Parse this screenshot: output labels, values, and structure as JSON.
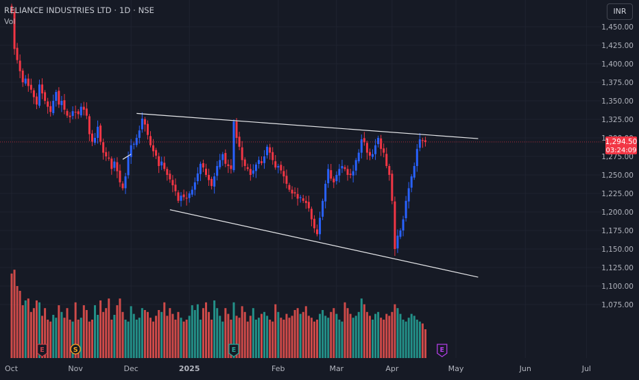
{
  "header": {
    "symbol_title": "RELIANCE INDUSTRIES LTD · 1D · NSE",
    "volume_label": "Vol",
    "currency": "INR"
  },
  "price_badge": {
    "price": "1,294.50",
    "countdown": "03:24:09",
    "color": "#f23645"
  },
  "event_markers": [
    {
      "letter": "E",
      "kind": "earnings",
      "color": "#c2404b",
      "date_index": 11
    },
    {
      "letter": "S",
      "kind": "split",
      "color": "#f5a623",
      "date_index": 23
    },
    {
      "letter": "E",
      "kind": "earnings",
      "color": "#26a69a",
      "date_index": 80
    },
    {
      "letter": "E",
      "kind": "earnings-upcoming",
      "color": "#b03ee3",
      "date_index": 155
    }
  ],
  "chart_data": {
    "type": "candlestick",
    "y_ticks": [
      "1,450.00",
      "1,425.00",
      "1,400.00",
      "1,375.00",
      "1,350.00",
      "1,325.00",
      "1,300.00",
      "1,275.00",
      "1,250.00",
      "1,225.00",
      "1,200.00",
      "1,175.00",
      "1,150.00",
      "1,125.00",
      "1,100.00",
      "1,075.00"
    ],
    "y_tick_values": [
      1450,
      1425,
      1400,
      1375,
      1350,
      1325,
      1300,
      1275,
      1250,
      1225,
      1200,
      1175,
      1150,
      1125,
      1100,
      1075
    ],
    "x_labels": [
      {
        "label": "Oct",
        "index": 0,
        "bold": false
      },
      {
        "label": "Nov",
        "index": 23,
        "bold": false
      },
      {
        "label": "Dec",
        "index": 43,
        "bold": false
      },
      {
        "label": "2025",
        "index": 64,
        "bold": true
      },
      {
        "label": "Feb",
        "index": 96,
        "bold": false
      },
      {
        "label": "Mar",
        "index": 117,
        "bold": false
      },
      {
        "label": "Apr",
        "index": 137,
        "bold": false
      },
      {
        "label": "May",
        "index": 160,
        "bold": false
      },
      {
        "label": "Jun",
        "index": 185,
        "bold": false
      },
      {
        "label": "Jul",
        "index": 207,
        "bold": false
      }
    ],
    "current_price": 1294.5,
    "colors": {
      "up": "#2962ff",
      "down": "#f23645",
      "vol_up": "#26a69a",
      "vol_down": "#ef5350"
    },
    "closes": [
      1470,
      1420,
      1405,
      1390,
      1375,
      1380,
      1370,
      1365,
      1355,
      1345,
      1372,
      1360,
      1350,
      1342,
      1335,
      1350,
      1362,
      1345,
      1350,
      1338,
      1330,
      1328,
      1336,
      1335,
      1332,
      1342,
      1338,
      1330,
      1305,
      1295,
      1300,
      1315,
      1295,
      1280,
      1275,
      1272,
      1258,
      1268,
      1255,
      1240,
      1232,
      1248,
      1275,
      1290,
      1292,
      1300,
      1310,
      1326,
      1318,
      1304,
      1290,
      1282,
      1276,
      1262,
      1268,
      1258,
      1250,
      1244,
      1236,
      1228,
      1215,
      1222,
      1220,
      1218,
      1225,
      1230,
      1240,
      1252,
      1265,
      1260,
      1250,
      1243,
      1235,
      1248,
      1262,
      1270,
      1278,
      1265,
      1262,
      1258,
      1322,
      1300,
      1288,
      1270,
      1262,
      1258,
      1250,
      1256,
      1264,
      1270,
      1266,
      1275,
      1288,
      1280,
      1270,
      1260,
      1262,
      1256,
      1248,
      1238,
      1230,
      1225,
      1225,
      1218,
      1220,
      1215,
      1212,
      1205,
      1190,
      1178,
      1170,
      1192,
      1215,
      1238,
      1258,
      1245,
      1240,
      1250,
      1258,
      1262,
      1258,
      1250,
      1250,
      1255,
      1270,
      1280,
      1298,
      1294,
      1280,
      1276,
      1278,
      1290,
      1300,
      1285,
      1280,
      1262,
      1250,
      1215,
      1150,
      1168,
      1175,
      1190,
      1215,
      1232,
      1248,
      1262,
      1285,
      1298,
      1296,
      1294.5
    ],
    "volumes": [
      88,
      92,
      75,
      70,
      55,
      60,
      62,
      48,
      52,
      60,
      58,
      44,
      52,
      40,
      38,
      45,
      42,
      55,
      48,
      42,
      52,
      40,
      38,
      58,
      40,
      42,
      55,
      50,
      38,
      40,
      55,
      45,
      60,
      48,
      52,
      62,
      40,
      45,
      55,
      62,
      48,
      40,
      38,
      54,
      46,
      40,
      42,
      52,
      50,
      48,
      42,
      38,
      44,
      50,
      48,
      58,
      44,
      52,
      46,
      40,
      48,
      42,
      38,
      40,
      44,
      55,
      50,
      56,
      40,
      52,
      58,
      48,
      40,
      60,
      52,
      44,
      38,
      52,
      46,
      40,
      58,
      44,
      42,
      54,
      48,
      38,
      44,
      52,
      40,
      42,
      46,
      48,
      44,
      40,
      38,
      56,
      48,
      42,
      40,
      46,
      42,
      44,
      50,
      52,
      46,
      48,
      54,
      44,
      42,
      38,
      40,
      46,
      50,
      44,
      42,
      48,
      52,
      46,
      40,
      38,
      58,
      52,
      46,
      42,
      44,
      48,
      62,
      56,
      48,
      44,
      40,
      46,
      48,
      42,
      40,
      46,
      44,
      48,
      56,
      52,
      46,
      40,
      38,
      42,
      46,
      44,
      40,
      38,
      36,
      30
    ],
    "channel_lines": [
      {
        "name": "upper-trendline",
        "from": {
          "index": 45,
          "price": 1333
        },
        "to": {
          "index": 168,
          "price": 1299
        }
      },
      {
        "name": "lower-trendline",
        "from": {
          "index": 57,
          "price": 1203
        },
        "to": {
          "index": 168,
          "price": 1112
        }
      }
    ]
  }
}
